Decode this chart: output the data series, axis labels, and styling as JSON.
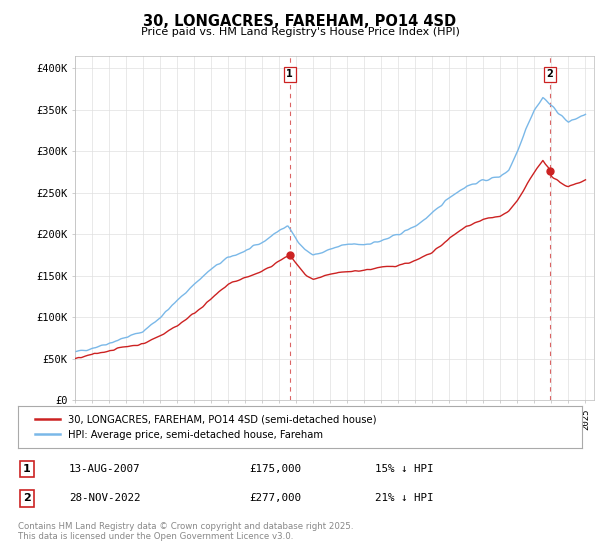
{
  "title": "30, LONGACRES, FAREHAM, PO14 4SD",
  "subtitle": "Price paid vs. HM Land Registry's House Price Index (HPI)",
  "ylabel_ticks": [
    "£0",
    "£50K",
    "£100K",
    "£150K",
    "£200K",
    "£250K",
    "£300K",
    "£350K",
    "£400K"
  ],
  "ytick_values": [
    0,
    50000,
    100000,
    150000,
    200000,
    250000,
    300000,
    350000,
    400000
  ],
  "ylim": [
    0,
    415000
  ],
  "xlim_start": 1995,
  "xlim_end": 2025.5,
  "hpi_color": "#7ab8e8",
  "price_color": "#cc2222",
  "dashed_color": "#cc2222",
  "marker1_year": 2007.617,
  "marker1_price": 175000,
  "marker2_year": 2022.91,
  "marker2_price": 277000,
  "legend_line1": "30, LONGACRES, FAREHAM, PO14 4SD (semi-detached house)",
  "legend_line2": "HPI: Average price, semi-detached house, Fareham",
  "table_row1_num": "1",
  "table_row1_date": "13-AUG-2007",
  "table_row1_price": "£175,000",
  "table_row1_hpi": "15% ↓ HPI",
  "table_row2_num": "2",
  "table_row2_date": "28-NOV-2022",
  "table_row2_price": "£277,000",
  "table_row2_hpi": "21% ↓ HPI",
  "footnote": "Contains HM Land Registry data © Crown copyright and database right 2025.\nThis data is licensed under the Open Government Licence v3.0.",
  "background_color": "#ffffff",
  "grid_color": "#e0e0e0",
  "hpi_key_years": [
    1995,
    1996,
    1997,
    1998,
    1999,
    2000,
    2001,
    2002,
    2003,
    2004,
    2005,
    2006,
    2007,
    2007.5,
    2008,
    2008.5,
    2009,
    2009.5,
    2010,
    2011,
    2012,
    2013,
    2014,
    2015,
    2016,
    2017,
    2018,
    2019,
    2020,
    2020.5,
    2021,
    2021.5,
    2022,
    2022.5,
    2023,
    2023.5,
    2024,
    2024.5,
    2025
  ],
  "hpi_key_vals": [
    58000,
    63000,
    69000,
    76000,
    83000,
    100000,
    120000,
    140000,
    158000,
    172000,
    180000,
    190000,
    205000,
    210000,
    195000,
    182000,
    175000,
    178000,
    182000,
    188000,
    188000,
    192000,
    200000,
    210000,
    225000,
    245000,
    258000,
    265000,
    270000,
    278000,
    300000,
    328000,
    350000,
    365000,
    355000,
    345000,
    335000,
    340000,
    345000
  ],
  "price_key_years": [
    1995,
    1996,
    1997,
    1998,
    1999,
    2000,
    2001,
    2002,
    2003,
    2004,
    2005,
    2006,
    2007,
    2007.617,
    2008,
    2008.5,
    2009,
    2009.5,
    2010,
    2011,
    2012,
    2013,
    2014,
    2015,
    2016,
    2017,
    2018,
    2019,
    2020,
    2020.5,
    2021,
    2021.5,
    2022,
    2022.5,
    2022.91,
    2023,
    2023.5,
    2024,
    2024.5,
    2025
  ],
  "price_key_vals": [
    50000,
    55000,
    60000,
    65000,
    68000,
    78000,
    90000,
    105000,
    122000,
    140000,
    148000,
    155000,
    168000,
    175000,
    165000,
    152000,
    145000,
    148000,
    152000,
    155000,
    157000,
    160000,
    163000,
    168000,
    178000,
    195000,
    210000,
    218000,
    222000,
    228000,
    240000,
    258000,
    275000,
    290000,
    277000,
    270000,
    262000,
    258000,
    262000,
    265000
  ]
}
